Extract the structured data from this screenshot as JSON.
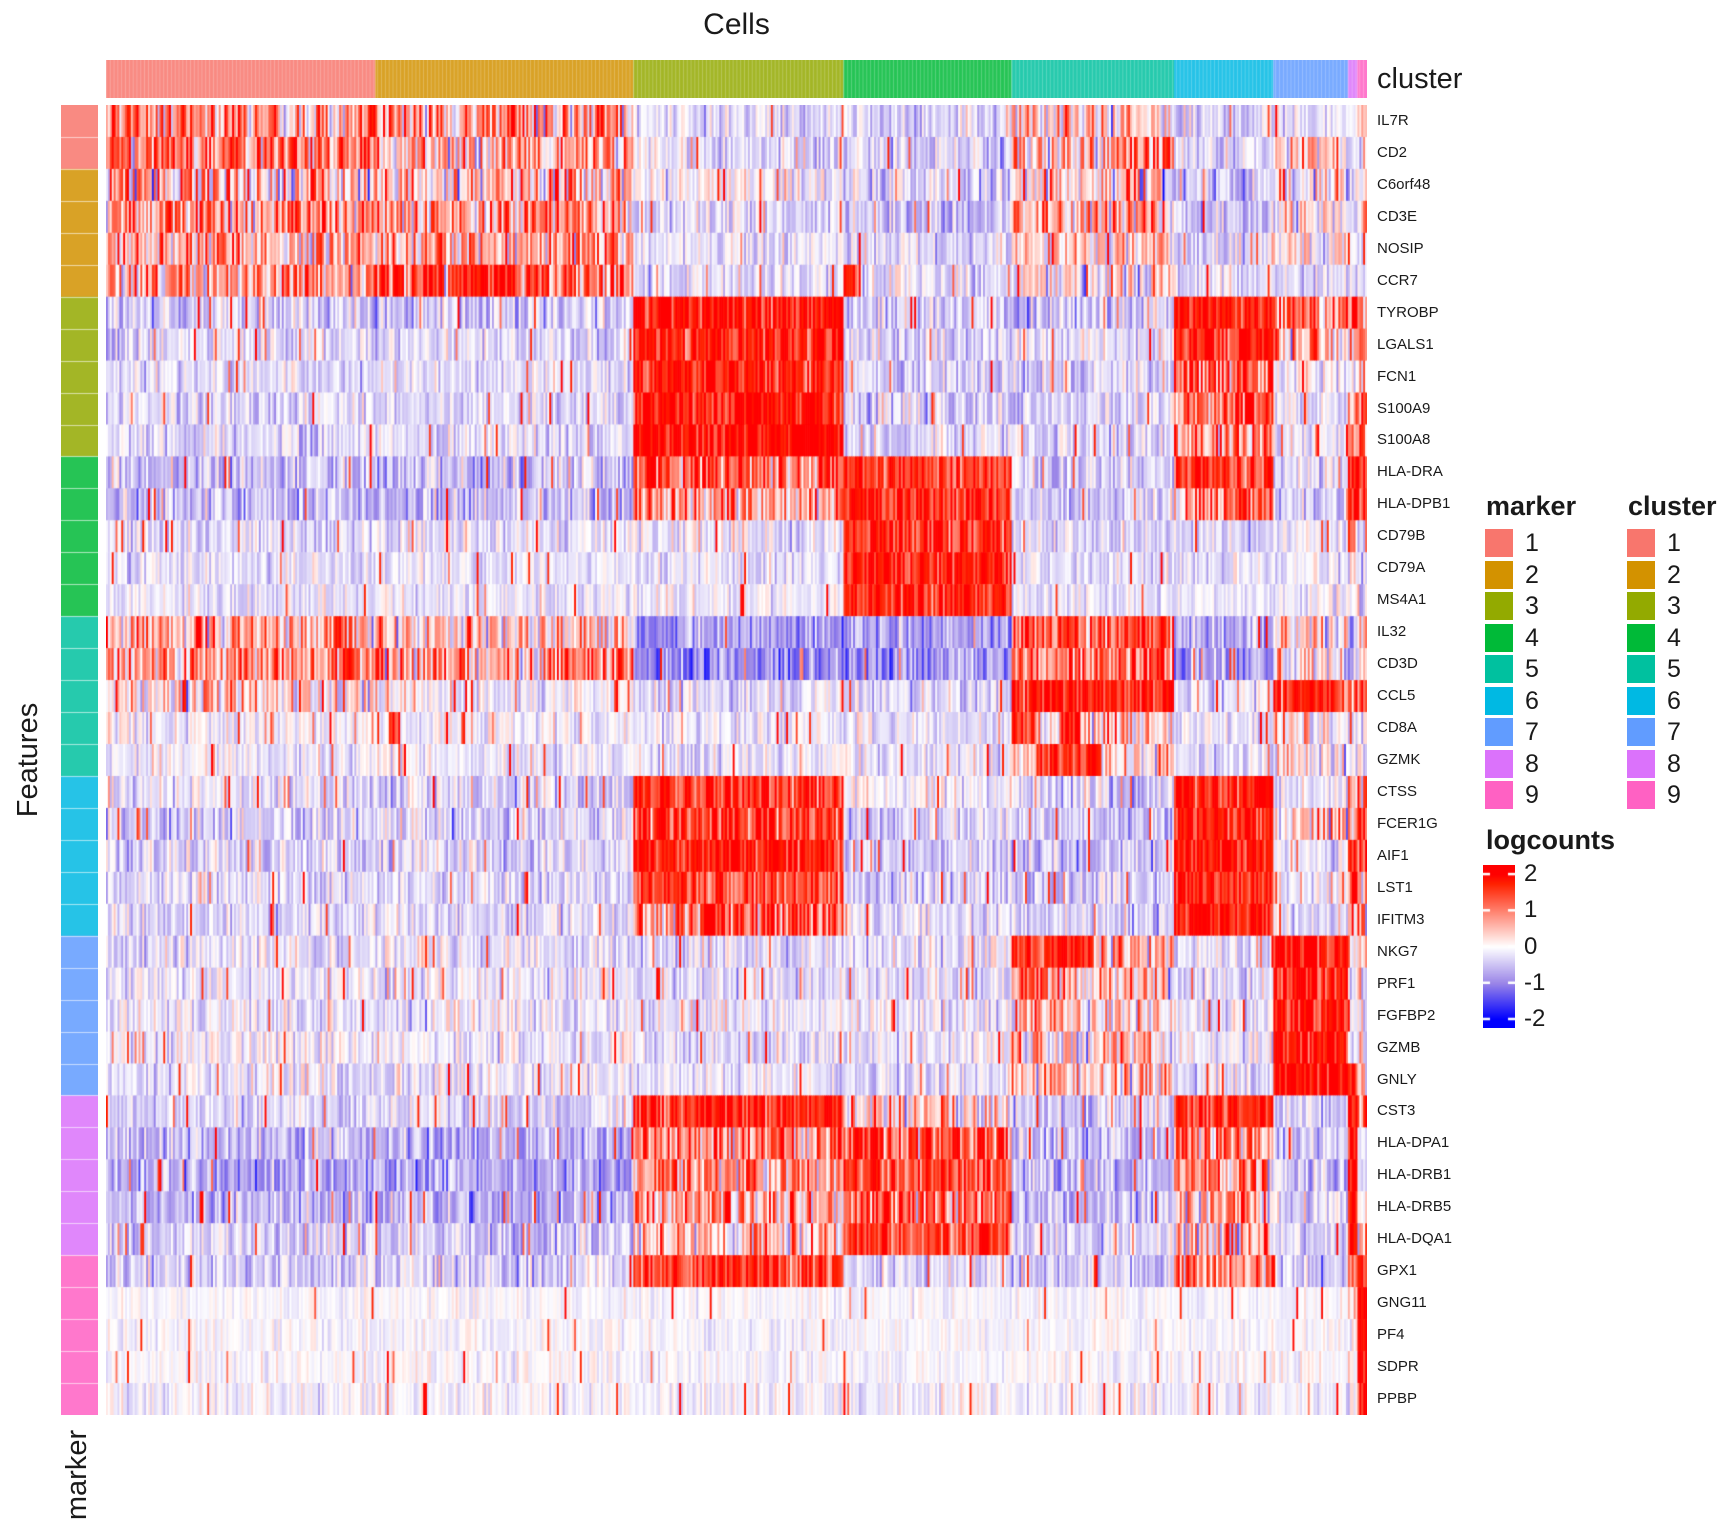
{
  "chart_data": {
    "type": "heatmap",
    "title": "Cells",
    "row_title": "Features",
    "column_annotation_title": "cluster",
    "row_annotation_title": "marker",
    "value_label": "logcounts",
    "value_range": [
      -2,
      2
    ],
    "legend_ticks": [
      "2",
      "1",
      "0",
      "-1",
      "-2"
    ],
    "legend_tick_values": [
      2,
      1,
      0,
      -1,
      -2
    ],
    "cluster_labels": [
      "1",
      "2",
      "3",
      "4",
      "5",
      "6",
      "7",
      "8",
      "9"
    ],
    "cluster_colors": [
      "#F8766D",
      "#D39200",
      "#93AA00",
      "#00BA38",
      "#00C19F",
      "#00B9E3",
      "#619CFF",
      "#DB72FB",
      "#FF61C3"
    ],
    "cluster_fractions": [
      0.2133,
      0.2046,
      0.1665,
      0.1332,
      0.13,
      0.0777,
      0.0595,
      0.0079,
      0.0073
    ],
    "marker_labels": [
      "1",
      "2",
      "3",
      "4",
      "5",
      "6",
      "7",
      "8",
      "9"
    ],
    "marker_colors": [
      "#F8766D",
      "#D39200",
      "#93AA00",
      "#00BA38",
      "#00C19F",
      "#00B9E3",
      "#619CFF",
      "#DB72FB",
      "#FF61C3"
    ],
    "colormap": {
      "high": "#FF0000",
      "mid": "#FFFFFF",
      "low": "#0000FF",
      "mid_low": "#9B86E8"
    },
    "genes": [
      {
        "name": "IL7R",
        "marker": 1,
        "means": [
          0.9,
          0.7,
          -0.3,
          -0.35,
          0.35,
          -0.35,
          -0.2,
          -0.2,
          0.1
        ]
      },
      {
        "name": "CD2",
        "marker": 1,
        "means": [
          1.0,
          0.6,
          -0.3,
          -0.35,
          0.8,
          -0.35,
          0.3,
          -0.2,
          0.0
        ]
      },
      {
        "name": "C6orf48",
        "marker": 2,
        "means": [
          0.5,
          0.45,
          -0.05,
          -0.4,
          0.3,
          -0.45,
          0.1,
          -0.3,
          -0.2
        ],
        "noise": 1.15
      },
      {
        "name": "CD3E",
        "marker": 2,
        "means": [
          0.8,
          0.7,
          -0.3,
          -0.5,
          0.6,
          -0.5,
          0.2,
          -0.3,
          0.2
        ]
      },
      {
        "name": "NOSIP",
        "marker": 2,
        "means": [
          0.6,
          0.6,
          -0.2,
          -0.3,
          0.3,
          -0.35,
          0.1,
          -0.2,
          0.0
        ]
      },
      {
        "name": "CCR7",
        "marker": 2,
        "means": [
          0.7,
          1.2,
          -0.3,
          -0.25,
          0.1,
          -0.3,
          -0.25,
          -0.2,
          -0.1
        ]
      },
      {
        "name": "TYROBP",
        "marker": 3,
        "means": [
          -0.4,
          -0.4,
          1.9,
          -0.4,
          -0.45,
          1.9,
          0.9,
          1.3,
          1.2
        ]
      },
      {
        "name": "LGALS1",
        "marker": 3,
        "means": [
          -0.35,
          -0.3,
          1.7,
          -0.4,
          -0.2,
          1.7,
          0.7,
          0.9,
          1.5
        ]
      },
      {
        "name": "FCN1",
        "marker": 3,
        "means": [
          -0.3,
          -0.3,
          1.8,
          -0.35,
          -0.35,
          1.3,
          -0.1,
          0.3,
          0.8
        ]
      },
      {
        "name": "S100A9",
        "marker": 3,
        "means": [
          -0.3,
          -0.3,
          2.0,
          -0.35,
          -0.3,
          1.1,
          -0.2,
          0.6,
          1.0
        ]
      },
      {
        "name": "S100A8",
        "marker": 3,
        "means": [
          -0.3,
          -0.3,
          2.0,
          -0.3,
          -0.3,
          0.8,
          -0.25,
          0.3,
          0.6
        ]
      },
      {
        "name": "HLA-DRA",
        "marker": 4,
        "means": [
          -0.5,
          -0.55,
          1.2,
          1.7,
          -0.4,
          1.5,
          -0.3,
          2.0,
          1.7
        ]
      },
      {
        "name": "HLA-DPB1",
        "marker": 4,
        "means": [
          -0.5,
          -0.55,
          0.9,
          1.6,
          -0.4,
          1.2,
          -0.4,
          2.0,
          1.5
        ]
      },
      {
        "name": "CD79B",
        "marker": 4,
        "means": [
          -0.3,
          -0.25,
          -0.2,
          1.6,
          -0.3,
          -0.3,
          -0.2,
          0.7,
          0.3
        ]
      },
      {
        "name": "CD79A",
        "marker": 4,
        "means": [
          -0.25,
          -0.2,
          -0.2,
          1.8,
          -0.25,
          -0.25,
          -0.2,
          0.2,
          0.0
        ],
        "noise": 0.85
      },
      {
        "name": "MS4A1",
        "marker": 4,
        "means": [
          -0.25,
          -0.2,
          -0.15,
          1.7,
          -0.25,
          -0.2,
          -0.15,
          -0.1,
          0.0
        ],
        "noise": 0.8
      },
      {
        "name": "IL32",
        "marker": 5,
        "means": [
          0.7,
          0.4,
          -0.8,
          -0.9,
          1.3,
          -0.7,
          0.3,
          -0.6,
          0.5
        ]
      },
      {
        "name": "CD3D",
        "marker": 5,
        "means": [
          0.9,
          0.8,
          -0.9,
          -0.9,
          1.1,
          -0.8,
          0.0,
          -0.7,
          0.2
        ]
      },
      {
        "name": "CCL5",
        "marker": 5,
        "means": [
          0.1,
          -0.1,
          -0.3,
          -0.35,
          1.9,
          -0.3,
          1.7,
          0.8,
          1.2
        ],
        "spike": 0.05
      },
      {
        "name": "CD8A",
        "marker": 5,
        "means": [
          -0.1,
          -0.15,
          -0.2,
          -0.2,
          0.3,
          -0.25,
          0.1,
          -0.1,
          0.0
        ],
        "noise": 0.9,
        "spike": 0.04
      },
      {
        "name": "GZMK",
        "marker": 5,
        "means": [
          -0.15,
          -0.15,
          -0.2,
          -0.2,
          0.25,
          -0.25,
          0.1,
          -0.1,
          0.0
        ],
        "noise": 0.9
      },
      {
        "name": "CTSS",
        "marker": 6,
        "means": [
          -0.3,
          -0.35,
          1.7,
          -0.05,
          -0.4,
          1.8,
          -0.2,
          1.0,
          0.8
        ],
        "noise": 1.05
      },
      {
        "name": "FCER1G",
        "marker": 6,
        "means": [
          -0.35,
          -0.35,
          1.6,
          -0.4,
          -0.45,
          1.8,
          0.3,
          0.8,
          1.0
        ]
      },
      {
        "name": "AIF1",
        "marker": 6,
        "means": [
          -0.35,
          -0.35,
          1.7,
          -0.4,
          -0.45,
          1.9,
          -0.2,
          1.5,
          1.2
        ]
      },
      {
        "name": "LST1",
        "marker": 6,
        "means": [
          -0.3,
          -0.3,
          1.4,
          -0.35,
          -0.4,
          1.9,
          -0.1,
          1.2,
          0.6
        ]
      },
      {
        "name": "IFITM3",
        "marker": 6,
        "means": [
          -0.3,
          -0.3,
          1.2,
          -0.25,
          -0.4,
          1.9,
          -0.2,
          0.8,
          0.6
        ]
      },
      {
        "name": "NKG7",
        "marker": 7,
        "means": [
          -0.2,
          -0.25,
          -0.3,
          -0.25,
          0.5,
          -0.3,
          2.0,
          -0.2,
          0.2
        ]
      },
      {
        "name": "PRF1",
        "marker": 7,
        "means": [
          -0.2,
          -0.2,
          -0.25,
          -0.25,
          0.4,
          -0.25,
          1.8,
          -0.15,
          0.1
        ]
      },
      {
        "name": "FGFBP2",
        "marker": 7,
        "means": [
          -0.15,
          -0.2,
          -0.2,
          -0.2,
          0.35,
          -0.2,
          1.8,
          -0.1,
          0.1
        ]
      },
      {
        "name": "GZMB",
        "marker": 7,
        "means": [
          -0.15,
          -0.15,
          -0.2,
          -0.2,
          0.3,
          -0.2,
          2.0,
          -0.1,
          0.1
        ]
      },
      {
        "name": "GNLY",
        "marker": 7,
        "means": [
          -0.2,
          -0.25,
          -0.25,
          -0.25,
          0.3,
          -0.25,
          2.0,
          1.6,
          0.1
        ]
      },
      {
        "name": "CST3",
        "marker": 8,
        "means": [
          -0.3,
          -0.3,
          1.7,
          0.2,
          -0.4,
          1.7,
          -0.35,
          2.0,
          1.3
        ]
      },
      {
        "name": "HLA-DPA1",
        "marker": 8,
        "means": [
          -0.6,
          -0.65,
          0.9,
          1.3,
          -0.55,
          1.2,
          -0.4,
          2.0,
          -0.3
        ]
      },
      {
        "name": "HLA-DRB1",
        "marker": 8,
        "means": [
          -0.7,
          -0.7,
          0.8,
          1.4,
          -0.6,
          1.0,
          -0.45,
          2.0,
          -0.3
        ]
      },
      {
        "name": "HLA-DRB5",
        "marker": 8,
        "means": [
          -0.6,
          -0.65,
          0.6,
          1.3,
          -0.55,
          0.7,
          -0.4,
          1.8,
          -0.2
        ]
      },
      {
        "name": "HLA-DQA1",
        "marker": 8,
        "means": [
          -0.4,
          -0.45,
          0.3,
          1.5,
          -0.35,
          0.5,
          -0.3,
          1.8,
          0.0
        ]
      },
      {
        "name": "GPX1",
        "marker": 9,
        "means": [
          -0.4,
          -0.35,
          1.6,
          -0.3,
          -0.4,
          1.0,
          -0.4,
          1.0,
          1.9
        ]
      },
      {
        "name": "GNG11",
        "marker": 9,
        "means": [
          -0.05,
          -0.05,
          -0.05,
          -0.05,
          -0.05,
          -0.05,
          -0.05,
          0.0,
          2.0
        ],
        "noise": 0.45,
        "spike": 0.02
      },
      {
        "name": "PF4",
        "marker": 9,
        "means": [
          -0.05,
          -0.05,
          -0.05,
          -0.05,
          -0.05,
          -0.05,
          -0.05,
          0.0,
          2.0
        ],
        "noise": 0.5,
        "spike": 0.02
      },
      {
        "name": "SDPR",
        "marker": 9,
        "means": [
          -0.05,
          -0.05,
          -0.08,
          -0.05,
          -0.05,
          -0.08,
          -0.05,
          0.0,
          2.0
        ],
        "noise": 0.55,
        "spike": 0.02
      },
      {
        "name": "PPBP",
        "marker": 9,
        "means": [
          -0.08,
          -0.08,
          -0.1,
          -0.08,
          -0.08,
          -0.1,
          -0.08,
          0.0,
          2.0
        ],
        "noise": 0.7,
        "spike": 0.025
      }
    ],
    "hotspots": [
      {
        "gene": "CD2",
        "cluster": 1,
        "from": 0.0,
        "to": 0.06,
        "value": 1.6
      },
      {
        "gene": "CCR7",
        "cluster": 2,
        "from": 0.3,
        "to": 0.55,
        "value": 1.8
      },
      {
        "gene": "CCR7",
        "cluster": 4,
        "from": 0.0,
        "to": 0.1,
        "value": 1.9
      },
      {
        "gene": "CD3D",
        "cluster": 2,
        "from": 0.93,
        "to": 1.0,
        "value": 1.4
      },
      {
        "gene": "CD8A",
        "cluster": 2,
        "from": 0.05,
        "to": 0.09,
        "value": 1.9
      },
      {
        "gene": "CD8A",
        "cluster": 5,
        "from": 0.0,
        "to": 0.12,
        "value": 1.7
      },
      {
        "gene": "CD8A",
        "cluster": 5,
        "from": 0.3,
        "to": 0.42,
        "value": 1.6
      },
      {
        "gene": "GZMK",
        "cluster": 5,
        "from": 0.15,
        "to": 0.55,
        "value": 1.7
      },
      {
        "gene": "NKG7",
        "cluster": 5,
        "from": 0.0,
        "to": 0.5,
        "value": 1.7
      },
      {
        "gene": "PRF1",
        "cluster": 5,
        "from": 0.0,
        "to": 0.35,
        "value": 1.2
      }
    ]
  },
  "legend": {
    "marker_title": "marker",
    "cluster_title": "cluster",
    "logcounts_title": "logcounts",
    "entries": [
      "1",
      "2",
      "3",
      "4",
      "5",
      "6",
      "7",
      "8",
      "9"
    ]
  }
}
